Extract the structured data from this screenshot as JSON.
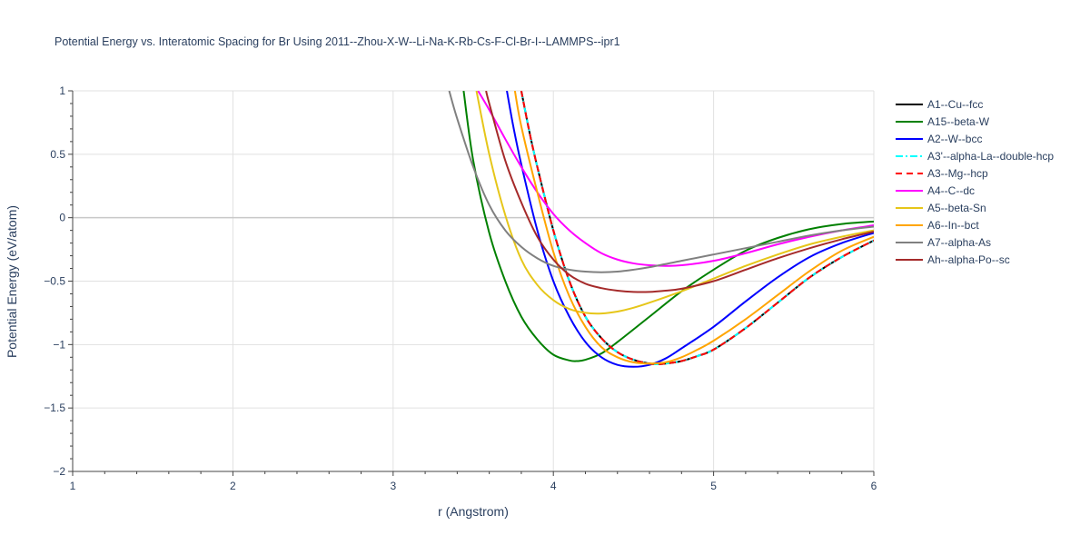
{
  "chart_data": {
    "type": "line",
    "title": "Potential Energy vs. Interatomic Spacing for Br Using 2011--Zhou-X-W--Li-Na-K-Rb-Cs-F-Cl-Br-I--LAMMPS--ipr1",
    "xlabel": "r (Angstrom)",
    "ylabel": "Potential Energy (eV/atom)",
    "xlim": [
      1,
      6
    ],
    "ylim": [
      -2,
      1
    ],
    "xticks": [
      1,
      2,
      3,
      4,
      5,
      6
    ],
    "xtick_labels": [
      "1",
      "2",
      "3",
      "4",
      "5",
      "6"
    ],
    "yticks": [
      -2,
      -1.5,
      -1,
      -0.5,
      0,
      0.5,
      1
    ],
    "ytick_labels": [
      "−2",
      "−1.5",
      "−1",
      "−0.5",
      "0",
      "0.5",
      "1"
    ],
    "grid": true,
    "legend_position": "right",
    "series": [
      {
        "name": "A1--Cu--fcc",
        "color": "#000000",
        "dash": "solid",
        "x": [
          3.8,
          3.85,
          3.9,
          4.0,
          4.1,
          4.2,
          4.3,
          4.4,
          4.5,
          4.6,
          4.65,
          4.7,
          4.8,
          4.9,
          5.0,
          5.2,
          5.4,
          5.6,
          5.8,
          6.0
        ],
        "y": [
          1.0,
          0.68,
          0.4,
          -0.1,
          -0.5,
          -0.78,
          -0.95,
          -1.06,
          -1.12,
          -1.15,
          -1.155,
          -1.15,
          -1.13,
          -1.09,
          -1.04,
          -0.87,
          -0.67,
          -0.47,
          -0.31,
          -0.18
        ]
      },
      {
        "name": "A15--beta-W",
        "color": "#008000",
        "dash": "solid",
        "x": [
          3.44,
          3.5,
          3.6,
          3.7,
          3.8,
          3.9,
          4.0,
          4.1,
          4.15,
          4.2,
          4.3,
          4.4,
          4.6,
          4.8,
          5.0,
          5.2,
          5.4,
          5.6,
          5.8,
          6.0
        ],
        "y": [
          1.0,
          0.45,
          -0.12,
          -0.5,
          -0.78,
          -0.96,
          -1.08,
          -1.125,
          -1.13,
          -1.12,
          -1.07,
          -0.98,
          -0.78,
          -0.58,
          -0.41,
          -0.26,
          -0.16,
          -0.09,
          -0.05,
          -0.03
        ]
      },
      {
        "name": "A2--W--bcc",
        "color": "#0000ff",
        "dash": "solid",
        "x": [
          3.71,
          3.75,
          3.8,
          3.9,
          4.0,
          4.1,
          4.2,
          4.3,
          4.4,
          4.5,
          4.6,
          4.7,
          4.8,
          5.0,
          5.2,
          5.4,
          5.6,
          5.8,
          6.0
        ],
        "y": [
          1.0,
          0.72,
          0.42,
          -0.1,
          -0.5,
          -0.78,
          -0.98,
          -1.1,
          -1.16,
          -1.175,
          -1.16,
          -1.11,
          -1.03,
          -0.86,
          -0.66,
          -0.47,
          -0.31,
          -0.2,
          -0.12
        ]
      },
      {
        "name": "A3'--alpha-La--double-hcp",
        "color": "#00ffff",
        "dash": "dashdot",
        "x": [
          3.8,
          3.85,
          3.9,
          4.0,
          4.1,
          4.2,
          4.3,
          4.4,
          4.5,
          4.6,
          4.65,
          4.7,
          4.8,
          4.9,
          5.0,
          5.2,
          5.4,
          5.6,
          5.8,
          6.0
        ],
        "y": [
          1.0,
          0.68,
          0.4,
          -0.1,
          -0.5,
          -0.78,
          -0.95,
          -1.06,
          -1.12,
          -1.15,
          -1.155,
          -1.15,
          -1.13,
          -1.09,
          -1.04,
          -0.87,
          -0.67,
          -0.47,
          -0.31,
          -0.18
        ]
      },
      {
        "name": "A3--Mg--hcp",
        "color": "#ff0000",
        "dash": "dash",
        "x": [
          3.8,
          3.85,
          3.9,
          4.0,
          4.1,
          4.2,
          4.3,
          4.4,
          4.5,
          4.6,
          4.65,
          4.7,
          4.8,
          4.9,
          5.0,
          5.2,
          5.4,
          5.6,
          5.8,
          6.0
        ],
        "y": [
          1.0,
          0.68,
          0.4,
          -0.1,
          -0.5,
          -0.78,
          -0.95,
          -1.06,
          -1.12,
          -1.15,
          -1.155,
          -1.15,
          -1.13,
          -1.09,
          -1.04,
          -0.87,
          -0.67,
          -0.47,
          -0.31,
          -0.18
        ]
      },
      {
        "name": "A4--C--dc",
        "color": "#ff00ff",
        "dash": "solid",
        "x": [
          3.53,
          3.6,
          3.7,
          3.8,
          3.9,
          4.0,
          4.1,
          4.2,
          4.3,
          4.4,
          4.5,
          4.6,
          4.7,
          4.8,
          5.0,
          5.2,
          5.4,
          5.6,
          5.8,
          6.0
        ],
        "y": [
          1.0,
          0.85,
          0.62,
          0.4,
          0.2,
          0.03,
          -0.1,
          -0.2,
          -0.28,
          -0.33,
          -0.36,
          -0.375,
          -0.38,
          -0.375,
          -0.34,
          -0.28,
          -0.21,
          -0.15,
          -0.1,
          -0.06
        ]
      },
      {
        "name": "A5--beta-Sn",
        "color": "#e6c619",
        "dash": "solid",
        "x": [
          3.52,
          3.6,
          3.7,
          3.8,
          3.9,
          4.0,
          4.1,
          4.2,
          4.3,
          4.4,
          4.5,
          4.6,
          4.8,
          5.0,
          5.2,
          5.4,
          5.6,
          5.8,
          6.0
        ],
        "y": [
          1.0,
          0.5,
          0.02,
          -0.33,
          -0.53,
          -0.65,
          -0.72,
          -0.75,
          -0.755,
          -0.74,
          -0.71,
          -0.67,
          -0.58,
          -0.48,
          -0.38,
          -0.29,
          -0.21,
          -0.15,
          -0.1
        ]
      },
      {
        "name": "A6--In--bct",
        "color": "#ffa500",
        "dash": "solid",
        "x": [
          3.76,
          3.8,
          3.9,
          4.0,
          4.1,
          4.2,
          4.3,
          4.4,
          4.5,
          4.6,
          4.7,
          4.8,
          4.9,
          5.0,
          5.2,
          5.4,
          5.6,
          5.8,
          6.0
        ],
        "y": [
          1.0,
          0.72,
          0.2,
          -0.27,
          -0.62,
          -0.86,
          -1.02,
          -1.1,
          -1.14,
          -1.15,
          -1.14,
          -1.1,
          -1.04,
          -0.97,
          -0.8,
          -0.61,
          -0.42,
          -0.26,
          -0.15
        ]
      },
      {
        "name": "A7--alpha-As",
        "color": "#808080",
        "dash": "solid",
        "x": [
          3.35,
          3.4,
          3.5,
          3.6,
          3.7,
          3.8,
          3.9,
          4.0,
          4.1,
          4.2,
          4.3,
          4.4,
          4.5,
          4.6,
          4.8,
          5.0,
          5.2,
          5.4,
          5.6,
          5.8,
          6.0
        ],
        "y": [
          1.0,
          0.78,
          0.4,
          0.1,
          -0.1,
          -0.23,
          -0.32,
          -0.38,
          -0.41,
          -0.425,
          -0.43,
          -0.425,
          -0.41,
          -0.39,
          -0.34,
          -0.29,
          -0.24,
          -0.19,
          -0.14,
          -0.1,
          -0.07
        ]
      },
      {
        "name": "Ah--alpha-Po--sc",
        "color": "#a52a2a",
        "dash": "solid",
        "x": [
          3.58,
          3.6,
          3.7,
          3.8,
          3.9,
          4.0,
          4.1,
          4.2,
          4.3,
          4.4,
          4.5,
          4.6,
          4.7,
          4.8,
          5.0,
          5.2,
          5.4,
          5.6,
          5.8,
          6.0
        ],
        "y": [
          1.0,
          0.9,
          0.45,
          0.12,
          -0.15,
          -0.33,
          -0.45,
          -0.52,
          -0.555,
          -0.575,
          -0.585,
          -0.585,
          -0.575,
          -0.56,
          -0.5,
          -0.41,
          -0.32,
          -0.24,
          -0.17,
          -0.11
        ]
      }
    ]
  }
}
